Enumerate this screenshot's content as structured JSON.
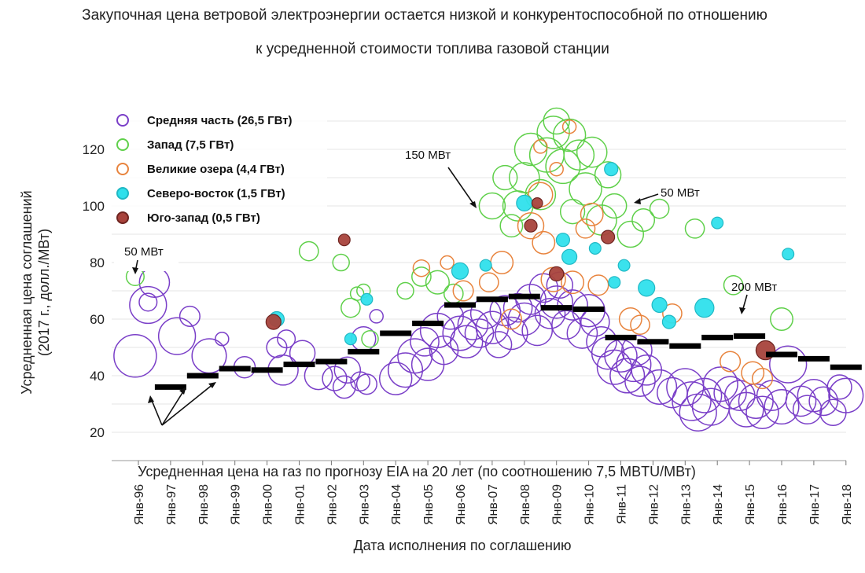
{
  "titles": {
    "line1": "Закупочная цена ветровой электроэнергии остается низкой и конкурентоспособной по отношению",
    "line2": "к усредненной стоимости топлива газовой станции"
  },
  "chart_data": {
    "type": "scatter",
    "ylabel_line1": "Усредненная цена соглашений",
    "ylabel_line2": "(2017 г., долл./МВт)",
    "xlabel": "Дата исполнения по соглашению",
    "gas_label": "Усредненная цена на газ по прогнозу EIA на 20 лет (по соотношению 7,5 MBTU/МВт)",
    "yticks": [
      20,
      40,
      60,
      80,
      100,
      120
    ],
    "ylim": [
      15,
      135
    ],
    "xlim": [
      1995.2,
      2019.4
    ],
    "xticks": [
      {
        "x": 1996,
        "label": "Янв-96"
      },
      {
        "x": 1997,
        "label": "Янв-97"
      },
      {
        "x": 1998,
        "label": "Янв-98"
      },
      {
        "x": 1999,
        "label": "Янв-99"
      },
      {
        "x": 2000,
        "label": "Янв-00"
      },
      {
        "x": 2001,
        "label": "Янв-01"
      },
      {
        "x": 2002,
        "label": "Янв-02"
      },
      {
        "x": 2003,
        "label": "Янв-03"
      },
      {
        "x": 2004,
        "label": "Янв-04"
      },
      {
        "x": 2005,
        "label": "Янв-05"
      },
      {
        "x": 2006,
        "label": "Янв-06"
      },
      {
        "x": 2007,
        "label": "Янв-07"
      },
      {
        "x": 2008,
        "label": "Янв-08"
      },
      {
        "x": 2009,
        "label": "Янв-09"
      },
      {
        "x": 2010,
        "label": "Янв-10"
      },
      {
        "x": 2011,
        "label": "Янв-11"
      },
      {
        "x": 2012,
        "label": "Янв-12"
      },
      {
        "x": 2013,
        "label": "Янв-13"
      },
      {
        "x": 2014,
        "label": "Янв-14"
      },
      {
        "x": 2015,
        "label": "Янв-15"
      },
      {
        "x": 2016,
        "label": "Янв-16"
      },
      {
        "x": 2017,
        "label": "Янв-17"
      },
      {
        "x": 2018,
        "label": "Янв-18"
      }
    ],
    "legend_position": "top-left",
    "series": [
      {
        "key": "mid",
        "name": "Средняя часть (26,5 ГВт)",
        "color": "#7a3fc8",
        "filled": false
      },
      {
        "key": "west",
        "name": "Запад (7,5 ГВт)",
        "color": "#5fd04a",
        "filled": false
      },
      {
        "key": "lakes",
        "name": "Великие озера (4,4 ГВт)",
        "color": "#e8843e",
        "filled": false
      },
      {
        "key": "ne",
        "name": "Северо-восток (1,5 ГВт)",
        "color": "#2fe0ec",
        "filled": true
      },
      {
        "key": "sw",
        "name": "Юго-запад (0,5 ГВт)",
        "color": "#a8433c",
        "filled": true
      }
    ],
    "gas_price": [
      {
        "x": 1997.0,
        "y": 36
      },
      {
        "x": 1998.0,
        "y": 40
      },
      {
        "x": 1999.0,
        "y": 42.5
      },
      {
        "x": 2000.0,
        "y": 42
      },
      {
        "x": 2001.0,
        "y": 44
      },
      {
        "x": 2002.0,
        "y": 45
      },
      {
        "x": 2003.0,
        "y": 48.5
      },
      {
        "x": 2004.0,
        "y": 55
      },
      {
        "x": 2005.0,
        "y": 58.5
      },
      {
        "x": 2006.0,
        "y": 65
      },
      {
        "x": 2007.0,
        "y": 67
      },
      {
        "x": 2008.0,
        "y": 68
      },
      {
        "x": 2009.0,
        "y": 64
      },
      {
        "x": 2010.0,
        "y": 63.5
      },
      {
        "x": 2011.0,
        "y": 53.5
      },
      {
        "x": 2012.0,
        "y": 52
      },
      {
        "x": 2013.0,
        "y": 50.5
      },
      {
        "x": 2014.0,
        "y": 53.5
      },
      {
        "x": 2015.0,
        "y": 54
      },
      {
        "x": 2016.0,
        "y": 47.5
      },
      {
        "x": 2017.0,
        "y": 46
      },
      {
        "x": 2018.0,
        "y": 43
      }
    ],
    "points": {
      "mid": [
        [
          1995.9,
          47,
          400
        ],
        [
          1996.3,
          65,
          300
        ],
        [
          1996.5,
          73,
          200
        ],
        [
          1996.3,
          66,
          70
        ],
        [
          1997.2,
          54,
          300
        ],
        [
          1997.6,
          61,
          90
        ],
        [
          1998.2,
          47,
          260
        ],
        [
          1998.6,
          53,
          40
        ],
        [
          1999.3,
          43,
          100
        ],
        [
          2000.3,
          50,
          90
        ],
        [
          2000.6,
          53,
          70
        ],
        [
          2000.5,
          42,
          200
        ],
        [
          2001.1,
          48,
          140
        ],
        [
          2001.6,
          40,
          170
        ],
        [
          2002.1,
          39,
          130
        ],
        [
          2002.4,
          36,
          110
        ],
        [
          2002.5,
          42,
          150
        ],
        [
          2002.9,
          38,
          80
        ],
        [
          2003.0,
          53,
          130
        ],
        [
          2003.1,
          37,
          90
        ],
        [
          2003.4,
          61,
          40
        ],
        [
          2004.0,
          39,
          230
        ],
        [
          2004.3,
          42,
          260
        ],
        [
          2004.6,
          47,
          260
        ],
        [
          2004.9,
          52,
          180
        ],
        [
          2005.0,
          44,
          230
        ],
        [
          2005.3,
          56,
          260
        ],
        [
          2005.5,
          49,
          180
        ],
        [
          2005.7,
          61,
          150
        ],
        [
          2006.0,
          55,
          260
        ],
        [
          2006.2,
          52,
          230
        ],
        [
          2006.4,
          58,
          200
        ],
        [
          2006.6,
          55,
          180
        ],
        [
          2006.8,
          62,
          200
        ],
        [
          2007.0,
          57,
          230
        ],
        [
          2007.2,
          51,
          150
        ],
        [
          2007.4,
          63,
          200
        ],
        [
          2007.6,
          55,
          230
        ],
        [
          2007.8,
          64,
          180
        ],
        [
          2008.0,
          60,
          230
        ],
        [
          2008.2,
          67,
          200
        ],
        [
          2008.4,
          56,
          200
        ],
        [
          2008.6,
          71,
          180
        ],
        [
          2008.8,
          62,
          200
        ],
        [
          2009.0,
          66,
          230
        ],
        [
          2009.1,
          72,
          150
        ],
        [
          2009.3,
          58,
          180
        ],
        [
          2009.5,
          65,
          200
        ],
        [
          2009.8,
          55,
          200
        ],
        [
          2010.0,
          63,
          230
        ],
        [
          2010.2,
          59,
          180
        ],
        [
          2010.4,
          52,
          200
        ],
        [
          2010.6,
          48,
          230
        ],
        [
          2010.8,
          43,
          260
        ],
        [
          2011.0,
          47,
          230
        ],
        [
          2011.2,
          40,
          260
        ],
        [
          2011.4,
          44,
          260
        ],
        [
          2011.6,
          38,
          200
        ],
        [
          2011.5,
          49,
          200
        ],
        [
          2011.8,
          42,
          200
        ],
        [
          2012.2,
          36,
          260
        ],
        [
          2012.6,
          34,
          200
        ],
        [
          2013.0,
          36,
          300
        ],
        [
          2013.2,
          31,
          330
        ],
        [
          2013.4,
          27,
          300
        ],
        [
          2013.6,
          33,
          260
        ],
        [
          2013.8,
          29,
          300
        ],
        [
          2014.1,
          37,
          260
        ],
        [
          2014.4,
          34,
          230
        ],
        [
          2014.7,
          33,
          200
        ],
        [
          2014.9,
          28,
          260
        ],
        [
          2015.2,
          31,
          260
        ],
        [
          2015.4,
          27,
          230
        ],
        [
          2015.7,
          33,
          200
        ],
        [
          2016.0,
          29,
          260
        ],
        [
          2016.2,
          44,
          300
        ],
        [
          2016.6,
          31,
          200
        ],
        [
          2016.8,
          28,
          180
        ],
        [
          2017.0,
          33,
          230
        ],
        [
          2017.3,
          31,
          180
        ],
        [
          2017.6,
          27,
          150
        ],
        [
          2018.0,
          33,
          260
        ],
        [
          2017.8,
          36,
          130
        ]
      ],
      "west": [
        [
          1995.9,
          75,
          70
        ],
        [
          2001.3,
          84,
          80
        ],
        [
          2002.3,
          80,
          60
        ],
        [
          2002.8,
          69,
          40
        ],
        [
          2002.6,
          64,
          80
        ],
        [
          2003.2,
          53,
          60
        ],
        [
          2004.3,
          70,
          60
        ],
        [
          2004.8,
          75,
          80
        ],
        [
          2005.3,
          73,
          120
        ],
        [
          2005.8,
          69,
          80
        ],
        [
          2007.0,
          100,
          150
        ],
        [
          2007.4,
          110,
          130
        ],
        [
          2007.6,
          93,
          110
        ],
        [
          2007.8,
          100,
          200
        ],
        [
          2008.0,
          110,
          200
        ],
        [
          2008.2,
          120,
          230
        ],
        [
          2008.5,
          104,
          200
        ],
        [
          2008.7,
          118,
          260
        ],
        [
          2008.9,
          126,
          230
        ],
        [
          2009.2,
          114,
          260
        ],
        [
          2009.4,
          125,
          230
        ],
        [
          2009.7,
          118,
          200
        ],
        [
          2009.9,
          106,
          230
        ],
        [
          2010.1,
          119,
          200
        ],
        [
          2010.4,
          95,
          200
        ],
        [
          2010.6,
          111,
          150
        ],
        [
          2010.8,
          100,
          130
        ],
        [
          2011.3,
          90,
          150
        ],
        [
          2011.7,
          95,
          110
        ],
        [
          2012.2,
          99,
          80
        ],
        [
          2013.3,
          92,
          80
        ],
        [
          2014.5,
          72,
          80
        ],
        [
          2016.0,
          60,
          110
        ],
        [
          2003.0,
          70,
          40
        ],
        [
          2009.0,
          130,
          150
        ],
        [
          2009.5,
          98,
          130
        ]
      ],
      "lakes": [
        [
          2004.8,
          78,
          60
        ],
        [
          2005.6,
          80,
          40
        ],
        [
          2006.1,
          70,
          90
        ],
        [
          2006.9,
          73,
          80
        ],
        [
          2007.3,
          80,
          110
        ],
        [
          2007.6,
          60,
          90
        ],
        [
          2008.2,
          93,
          150
        ],
        [
          2008.5,
          104,
          130
        ],
        [
          2008.6,
          87,
          110
        ],
        [
          2008.9,
          74,
          130
        ],
        [
          2009.5,
          73,
          110
        ],
        [
          2009.9,
          92,
          80
        ],
        [
          2010.1,
          97,
          110
        ],
        [
          2010.3,
          72,
          90
        ],
        [
          2011.3,
          60,
          110
        ],
        [
          2011.6,
          58,
          80
        ],
        [
          2012.6,
          62,
          80
        ],
        [
          2014.4,
          45,
          90
        ],
        [
          2015.1,
          41,
          110
        ],
        [
          2015.4,
          39,
          90
        ],
        [
          2009.0,
          113,
          40
        ],
        [
          2009.4,
          128,
          40
        ],
        [
          2008.5,
          121,
          40
        ]
      ],
      "ne": [
        [
          2000.3,
          60,
          50
        ],
        [
          2002.6,
          53,
          30
        ],
        [
          2003.1,
          67,
          30
        ],
        [
          2006.0,
          77,
          60
        ],
        [
          2006.8,
          79,
          30
        ],
        [
          2008.0,
          101,
          55
        ],
        [
          2009.4,
          82,
          50
        ],
        [
          2010.2,
          85,
          30
        ],
        [
          2010.7,
          113,
          40
        ],
        [
          2010.8,
          73,
          30
        ],
        [
          2011.1,
          79,
          30
        ],
        [
          2011.8,
          71,
          60
        ],
        [
          2012.2,
          65,
          50
        ],
        [
          2012.5,
          59,
          40
        ],
        [
          2013.6,
          64,
          80
        ],
        [
          2014.0,
          94,
          30
        ],
        [
          2016.2,
          83,
          30
        ],
        [
          2009.2,
          88,
          40
        ]
      ],
      "sw": [
        [
          2000.2,
          59,
          50
        ],
        [
          2002.4,
          88,
          30
        ],
        [
          2008.2,
          93,
          35
        ],
        [
          2008.4,
          101,
          25
        ],
        [
          2009.0,
          76,
          45
        ],
        [
          2010.6,
          89,
          40
        ],
        [
          2015.5,
          49,
          80
        ]
      ]
    },
    "annotations": {
      "a1": "50 МВт",
      "a2": "150 МВт",
      "a3": "50 МВт",
      "a4": "200 МВт"
    }
  }
}
